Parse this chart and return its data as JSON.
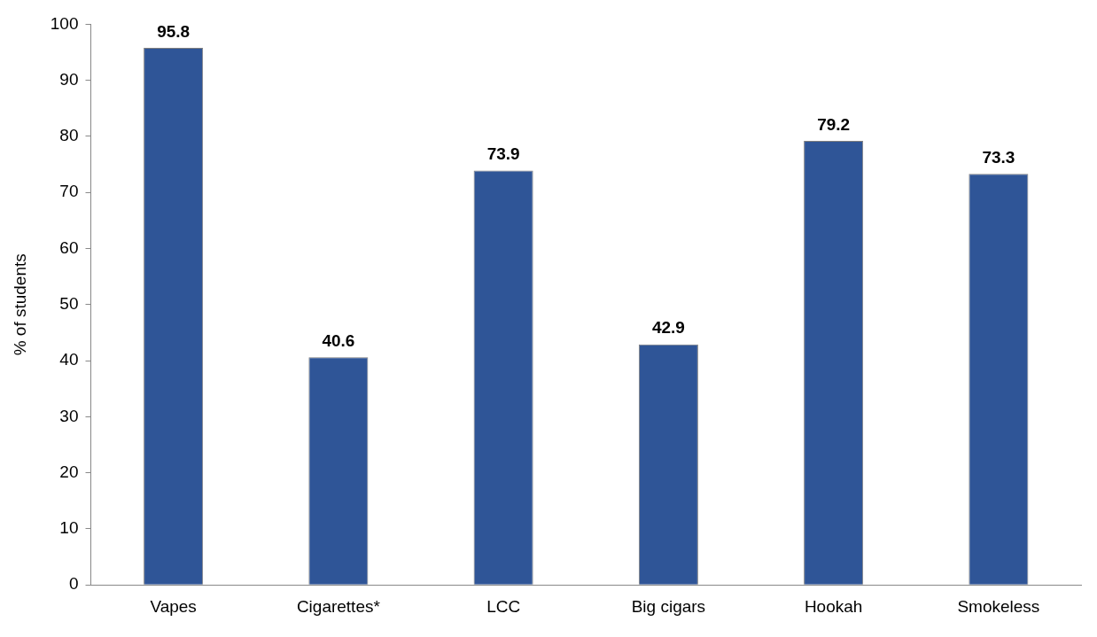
{
  "chart_data": {
    "type": "bar",
    "ylabel": "% of students",
    "categories": [
      "Vapes",
      "Cigarettes*",
      "LCC",
      "Big cigars",
      "Hookah",
      "Smokeless"
    ],
    "values": [
      95.8,
      40.6,
      73.9,
      42.9,
      79.2,
      73.3
    ],
    "color": "#2f5597",
    "ylim": [
      0,
      100
    ],
    "yticks": [
      0,
      10,
      20,
      30,
      40,
      50,
      60,
      70,
      80,
      90,
      100
    ],
    "grid": false,
    "legend": false,
    "data_labels": true
  }
}
